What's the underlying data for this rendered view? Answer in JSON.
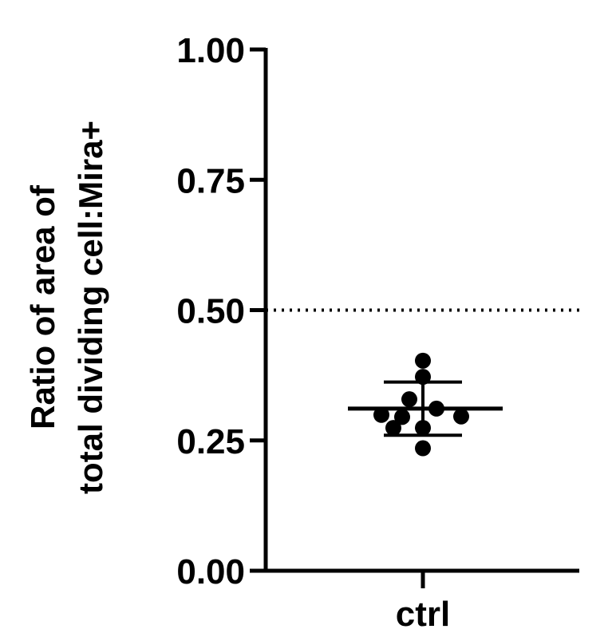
{
  "chart_data": {
    "type": "scatter",
    "categories": [
      "ctrl"
    ],
    "ylabel_lines": [
      "Ratio of area of",
      "total dividing cell:Mira+"
    ],
    "ylim": [
      0,
      1
    ],
    "yticks": [
      "0.00",
      "0.25",
      "0.50",
      "0.75",
      "1.00"
    ],
    "reference_line": {
      "y": 0.5,
      "style": "dotted"
    },
    "points": [
      {
        "x": "ctrl",
        "y": 0.403
      },
      {
        "x": "ctrl",
        "y": 0.372
      },
      {
        "x": "ctrl",
        "y": 0.329
      },
      {
        "x": "ctrl",
        "y": 0.311
      },
      {
        "x": "ctrl",
        "y": 0.299
      },
      {
        "x": "ctrl",
        "y": 0.296
      },
      {
        "x": "ctrl",
        "y": 0.295
      },
      {
        "x": "ctrl",
        "y": 0.274
      },
      {
        "x": "ctrl",
        "y": 0.274
      },
      {
        "x": "ctrl",
        "y": 0.235
      }
    ],
    "mean": 0.311,
    "sd_upper": 0.362,
    "sd_lower": 0.26,
    "colors": {
      "points": "#000000",
      "axes": "#000000"
    }
  }
}
